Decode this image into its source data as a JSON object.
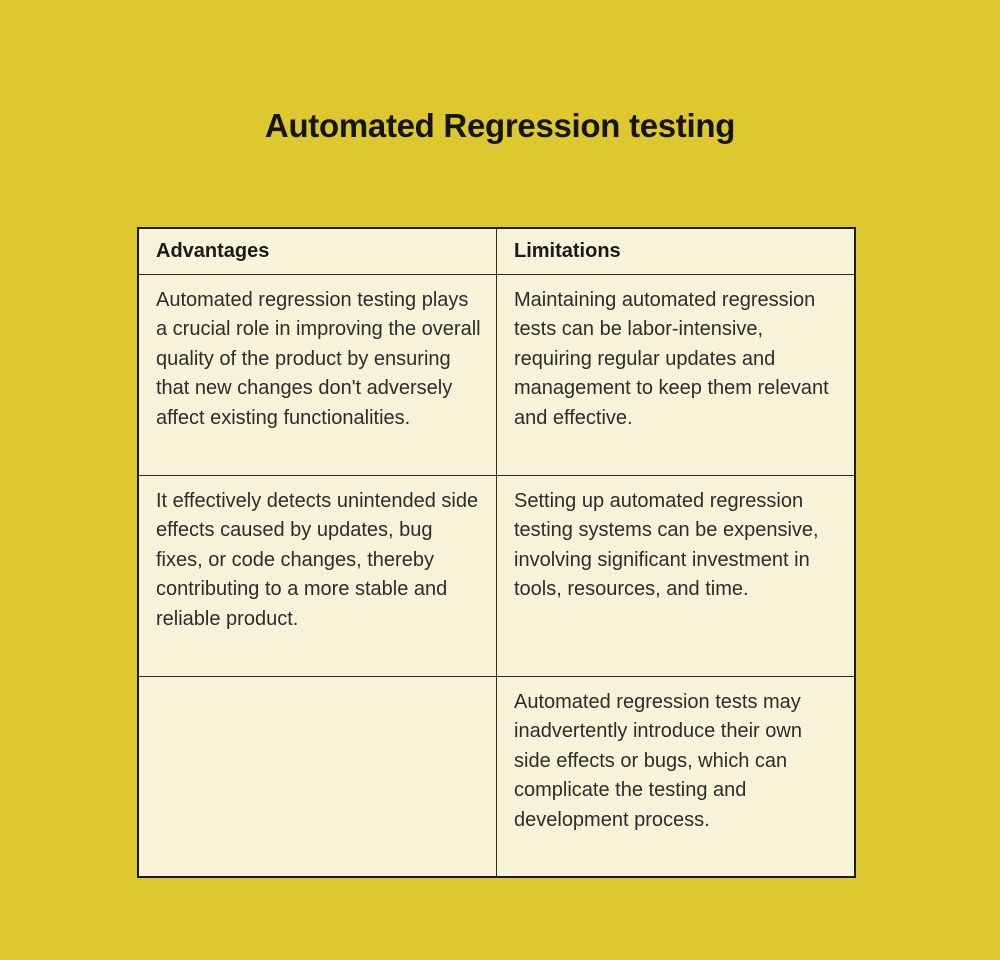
{
  "page": {
    "title": "Automated Regression testing"
  },
  "colors": {
    "page_background": "#ddc82f",
    "table_background": "#f8f2d8",
    "border": "#1c1c1c",
    "title_text": "#151515",
    "body_text": "#2c2c2c"
  },
  "table": {
    "columns": [
      {
        "label": "Advantages"
      },
      {
        "label": "Limitations"
      }
    ],
    "rows": [
      {
        "advantage": "Automated regression testing plays a crucial role in improving the overall quality of the product by ensuring that new changes don't adversely affect existing functionalities.",
        "limitation": "Maintaining automated regression tests can be labor-intensive, requiring regular updates and management to keep them relevant and effective."
      },
      {
        "advantage": "It effectively detects unintended side effects caused by updates, bug fixes, or code changes, thereby contributing to a more stable and reliable product.",
        "limitation": "Setting up automated regression testing systems can be expensive, involving significant investment in tools, resources, and time."
      },
      {
        "advantage": "",
        "limitation": "Automated regression tests may inadvertently introduce their own side effects or bugs, which can complicate the testing and development process."
      }
    ]
  }
}
